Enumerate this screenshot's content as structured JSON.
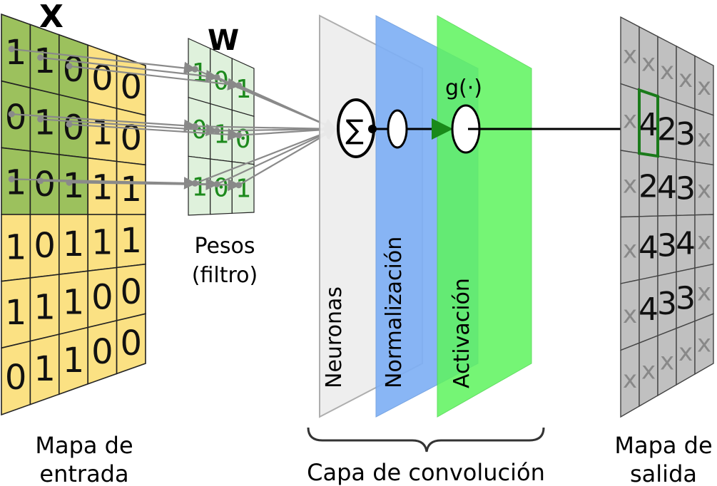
{
  "input": {
    "symbol": "X",
    "caption": [
      "Mapa de",
      "entrada"
    ],
    "rows": [
      [
        "1",
        "1",
        "0",
        "0",
        "0"
      ],
      [
        "0",
        "1",
        "0",
        "1",
        "0"
      ],
      [
        "1",
        "0",
        "1",
        "1",
        "1"
      ],
      [
        "1",
        "0",
        "1",
        "1",
        "1"
      ],
      [
        "1",
        "1",
        "1",
        "0",
        "0"
      ],
      [
        "0",
        "1",
        "1",
        "0",
        "0"
      ]
    ],
    "highlight_rows": 3,
    "highlight_cols": 3,
    "colors": {
      "base": "#fbe183",
      "highlight": "#9cc15d",
      "grid": "#222222"
    }
  },
  "weights": {
    "symbol": "W",
    "caption": [
      "Pesos",
      "(filtro)"
    ],
    "rows": [
      [
        "1",
        "0",
        "1"
      ],
      [
        "0",
        "1",
        "0"
      ],
      [
        "1",
        "0",
        "1"
      ]
    ],
    "colors": {
      "fill": "#dff1dc",
      "digit": "#1d8a1d",
      "grid": "#222222"
    }
  },
  "layer": {
    "planes": [
      {
        "label": "Neuronas",
        "color": "#eeeeee"
      },
      {
        "label": "Normalización",
        "color": "#7fb0f5"
      },
      {
        "label": "Activación",
        "color": "#5ef45e"
      }
    ],
    "sum_symbol": "∑",
    "activation_label": "g(·)",
    "caption": "Capa de convolución"
  },
  "output": {
    "caption": [
      "Mapa de",
      "salida"
    ],
    "rows": [
      [
        "x",
        "x",
        "x",
        "x",
        "x"
      ],
      [
        "x",
        "4",
        "2",
        "3",
        "x"
      ],
      [
        "x",
        "2",
        "4",
        "3",
        "x"
      ],
      [
        "x",
        "4",
        "3",
        "4",
        "x"
      ],
      [
        "x",
        "4",
        "3",
        "3",
        "x"
      ],
      [
        "x",
        "x",
        "x",
        "x",
        "x"
      ]
    ],
    "colors": {
      "fill": "#c0c0c0",
      "placeholder": "#888888",
      "value": "#111111",
      "highlight": "#1a7a1a"
    }
  }
}
